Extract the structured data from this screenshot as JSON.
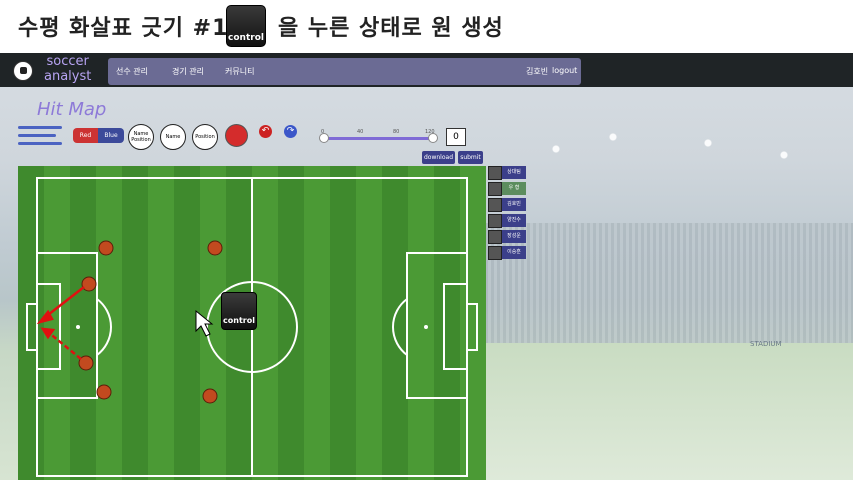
{
  "caption": {
    "left_text": "수평 화살표 긋기 #1",
    "key_label": "control",
    "right_text": "을 누른 상태로 원 생성"
  },
  "app": {
    "logo_line1": "soccer",
    "logo_line2": "analyst",
    "nav": {
      "player_mgmt": "선수 관리",
      "match_mgmt": "경기 관리",
      "community": "커뮤니티",
      "user": "김호빈",
      "logout": "logout"
    },
    "page_title": "Hit Map",
    "toolbar": {
      "team_red": "Red",
      "team_blue": "Blue",
      "name_position_line1": "Name",
      "name_position_line2": "Position",
      "name_label": "Name",
      "position_label": "Position",
      "slider_ticks": [
        "0",
        "40",
        "80",
        "120"
      ],
      "slider_value": "0",
      "download": "download",
      "submit": "submit"
    },
    "players": [
      {
        "name": "상대팀",
        "selected": false
      },
      {
        "name": "우 형",
        "selected": true
      },
      {
        "name": "김호빈",
        "selected": false
      },
      {
        "name": "양진수",
        "selected": false
      },
      {
        "name": "장성운",
        "selected": false
      },
      {
        "name": "이승훈",
        "selected": false
      }
    ],
    "background_label": "STADIUM",
    "cursor_key_label": "control"
  },
  "colors": {
    "accent_purple": "#8d7ad8",
    "nav_bg": "#6b6b94",
    "button_dark_blue": "#3b3f8a",
    "team_red": "#cc3333",
    "team_blue": "#3c4a9a",
    "player_marker": "#c24a1f",
    "arrow_red": "#e01010"
  }
}
